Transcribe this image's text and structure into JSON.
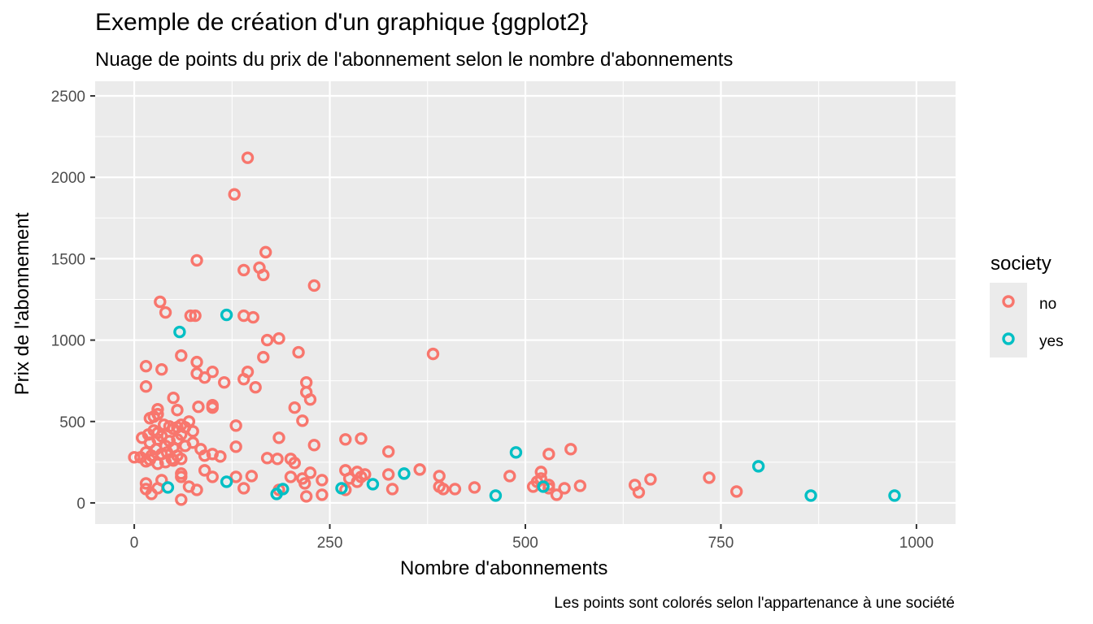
{
  "chart_data": {
    "type": "scatter",
    "title": "Exemple de création d'un graphique {ggplot2}",
    "subtitle": "Nuage de points du prix de l'abonnement selon le nombre d'abonnements",
    "caption": "Les points sont colorés selon l'appartenance à une société",
    "xlabel": "Nombre d'abonnements",
    "ylabel": "Prix de l'abonnement",
    "xlim": [
      -50,
      1050
    ],
    "ylim": [
      -130,
      2590
    ],
    "x_ticks": [
      0,
      250,
      500,
      750,
      1000
    ],
    "x_tick_labels": [
      "0",
      "250",
      "500",
      "750",
      "1000"
    ],
    "y_ticks": [
      0,
      500,
      1000,
      1500,
      2000,
      2500
    ],
    "y_tick_labels": [
      "0",
      "500",
      "1000",
      "1500",
      "2000",
      "2500"
    ],
    "grid": true,
    "legend": {
      "title": "society",
      "position": "right",
      "entries": [
        {
          "label": "no",
          "color": "#f8766d"
        },
        {
          "label": "yes",
          "color": "#00bfc4"
        }
      ]
    },
    "series": [
      {
        "name": "no",
        "color": "#f8766d",
        "points": [
          [
            145,
            2120
          ],
          [
            128,
            1895
          ],
          [
            168,
            1540
          ],
          [
            80,
            1490
          ],
          [
            160,
            1445
          ],
          [
            140,
            1430
          ],
          [
            165,
            1400
          ],
          [
            230,
            1335
          ],
          [
            33,
            1235
          ],
          [
            40,
            1170
          ],
          [
            72,
            1150
          ],
          [
            78,
            1150
          ],
          [
            140,
            1150
          ],
          [
            152,
            1140
          ],
          [
            185,
            1010
          ],
          [
            170,
            1000
          ],
          [
            210,
            925
          ],
          [
            382,
            915
          ],
          [
            60,
            905
          ],
          [
            165,
            895
          ],
          [
            15,
            840
          ],
          [
            35,
            820
          ],
          [
            80,
            865
          ],
          [
            145,
            805
          ],
          [
            100,
            805
          ],
          [
            80,
            795
          ],
          [
            90,
            770
          ],
          [
            115,
            740
          ],
          [
            140,
            760
          ],
          [
            220,
            740
          ],
          [
            155,
            710
          ],
          [
            15,
            715
          ],
          [
            50,
            645
          ],
          [
            220,
            680
          ],
          [
            225,
            635
          ],
          [
            205,
            585
          ],
          [
            82,
            590
          ],
          [
            100,
            600
          ],
          [
            100,
            585
          ],
          [
            55,
            570
          ],
          [
            25,
            530
          ],
          [
            30,
            545
          ],
          [
            20,
            520
          ],
          [
            30,
            575
          ],
          [
            215,
            505
          ],
          [
            130,
            475
          ],
          [
            10,
            400
          ],
          [
            18,
            420
          ],
          [
            25,
            445
          ],
          [
            30,
            430
          ],
          [
            38,
            480
          ],
          [
            45,
            470
          ],
          [
            50,
            455
          ],
          [
            55,
            465
          ],
          [
            60,
            480
          ],
          [
            65,
            465
          ],
          [
            70,
            500
          ],
          [
            75,
            440
          ],
          [
            20,
            370
          ],
          [
            30,
            390
          ],
          [
            35,
            410
          ],
          [
            40,
            350
          ],
          [
            45,
            380
          ],
          [
            50,
            340
          ],
          [
            55,
            390
          ],
          [
            60,
            420
          ],
          [
            65,
            350
          ],
          [
            15,
            310
          ],
          [
            22,
            290
          ],
          [
            28,
            330
          ],
          [
            35,
            300
          ],
          [
            42,
            310
          ],
          [
            48,
            270
          ],
          [
            55,
            290
          ],
          [
            15,
            255
          ],
          [
            20,
            265
          ],
          [
            30,
            240
          ],
          [
            40,
            250
          ],
          [
            50,
            260
          ],
          [
            60,
            270
          ],
          [
            75,
            370
          ],
          [
            85,
            330
          ],
          [
            90,
            290
          ],
          [
            100,
            300
          ],
          [
            110,
            285
          ],
          [
            130,
            345
          ],
          [
            185,
            400
          ],
          [
            230,
            355
          ],
          [
            270,
            390
          ],
          [
            290,
            395
          ],
          [
            325,
            315
          ],
          [
            530,
            300
          ],
          [
            558,
            330
          ],
          [
            0,
            280
          ],
          [
            8,
            280
          ],
          [
            170,
            275
          ],
          [
            183,
            270
          ],
          [
            200,
            270
          ],
          [
            205,
            245
          ],
          [
            270,
            200
          ],
          [
            285,
            190
          ],
          [
            290,
            160
          ],
          [
            365,
            205
          ],
          [
            390,
            165
          ],
          [
            480,
            165
          ],
          [
            520,
            190
          ],
          [
            530,
            110
          ],
          [
            15,
            120
          ],
          [
            15,
            85
          ],
          [
            22,
            55
          ],
          [
            30,
            90
          ],
          [
            35,
            140
          ],
          [
            60,
            180
          ],
          [
            60,
            160
          ],
          [
            70,
            100
          ],
          [
            80,
            80
          ],
          [
            90,
            200
          ],
          [
            100,
            160
          ],
          [
            130,
            160
          ],
          [
            140,
            90
          ],
          [
            150,
            165
          ],
          [
            185,
            80
          ],
          [
            200,
            160
          ],
          [
            215,
            150
          ],
          [
            220,
            40
          ],
          [
            225,
            185
          ],
          [
            240,
            140
          ],
          [
            240,
            50
          ],
          [
            270,
            80
          ],
          [
            275,
            150
          ],
          [
            285,
            130
          ],
          [
            295,
            175
          ],
          [
            325,
            175
          ],
          [
            330,
            85
          ],
          [
            390,
            100
          ],
          [
            410,
            85
          ],
          [
            435,
            95
          ],
          [
            510,
            100
          ],
          [
            515,
            130
          ],
          [
            520,
            150
          ],
          [
            530,
            90
          ],
          [
            540,
            50
          ],
          [
            550,
            90
          ],
          [
            570,
            105
          ],
          [
            640,
            110
          ],
          [
            645,
            65
          ],
          [
            660,
            145
          ],
          [
            735,
            155
          ],
          [
            770,
            70
          ],
          [
            60,
            20
          ],
          [
            218,
            120
          ],
          [
            395,
            85
          ]
        ]
      },
      {
        "name": "yes",
        "color": "#00bfc4",
        "points": [
          [
            58,
            1050
          ],
          [
            118,
            1155
          ],
          [
            488,
            310
          ],
          [
            798,
            225
          ],
          [
            345,
            180
          ],
          [
            118,
            130
          ],
          [
            305,
            115
          ],
          [
            43,
            95
          ],
          [
            190,
            85
          ],
          [
            265,
            90
          ],
          [
            523,
            100
          ],
          [
            182,
            55
          ],
          [
            462,
            45
          ],
          [
            865,
            45
          ],
          [
            972,
            45
          ]
        ]
      }
    ]
  }
}
